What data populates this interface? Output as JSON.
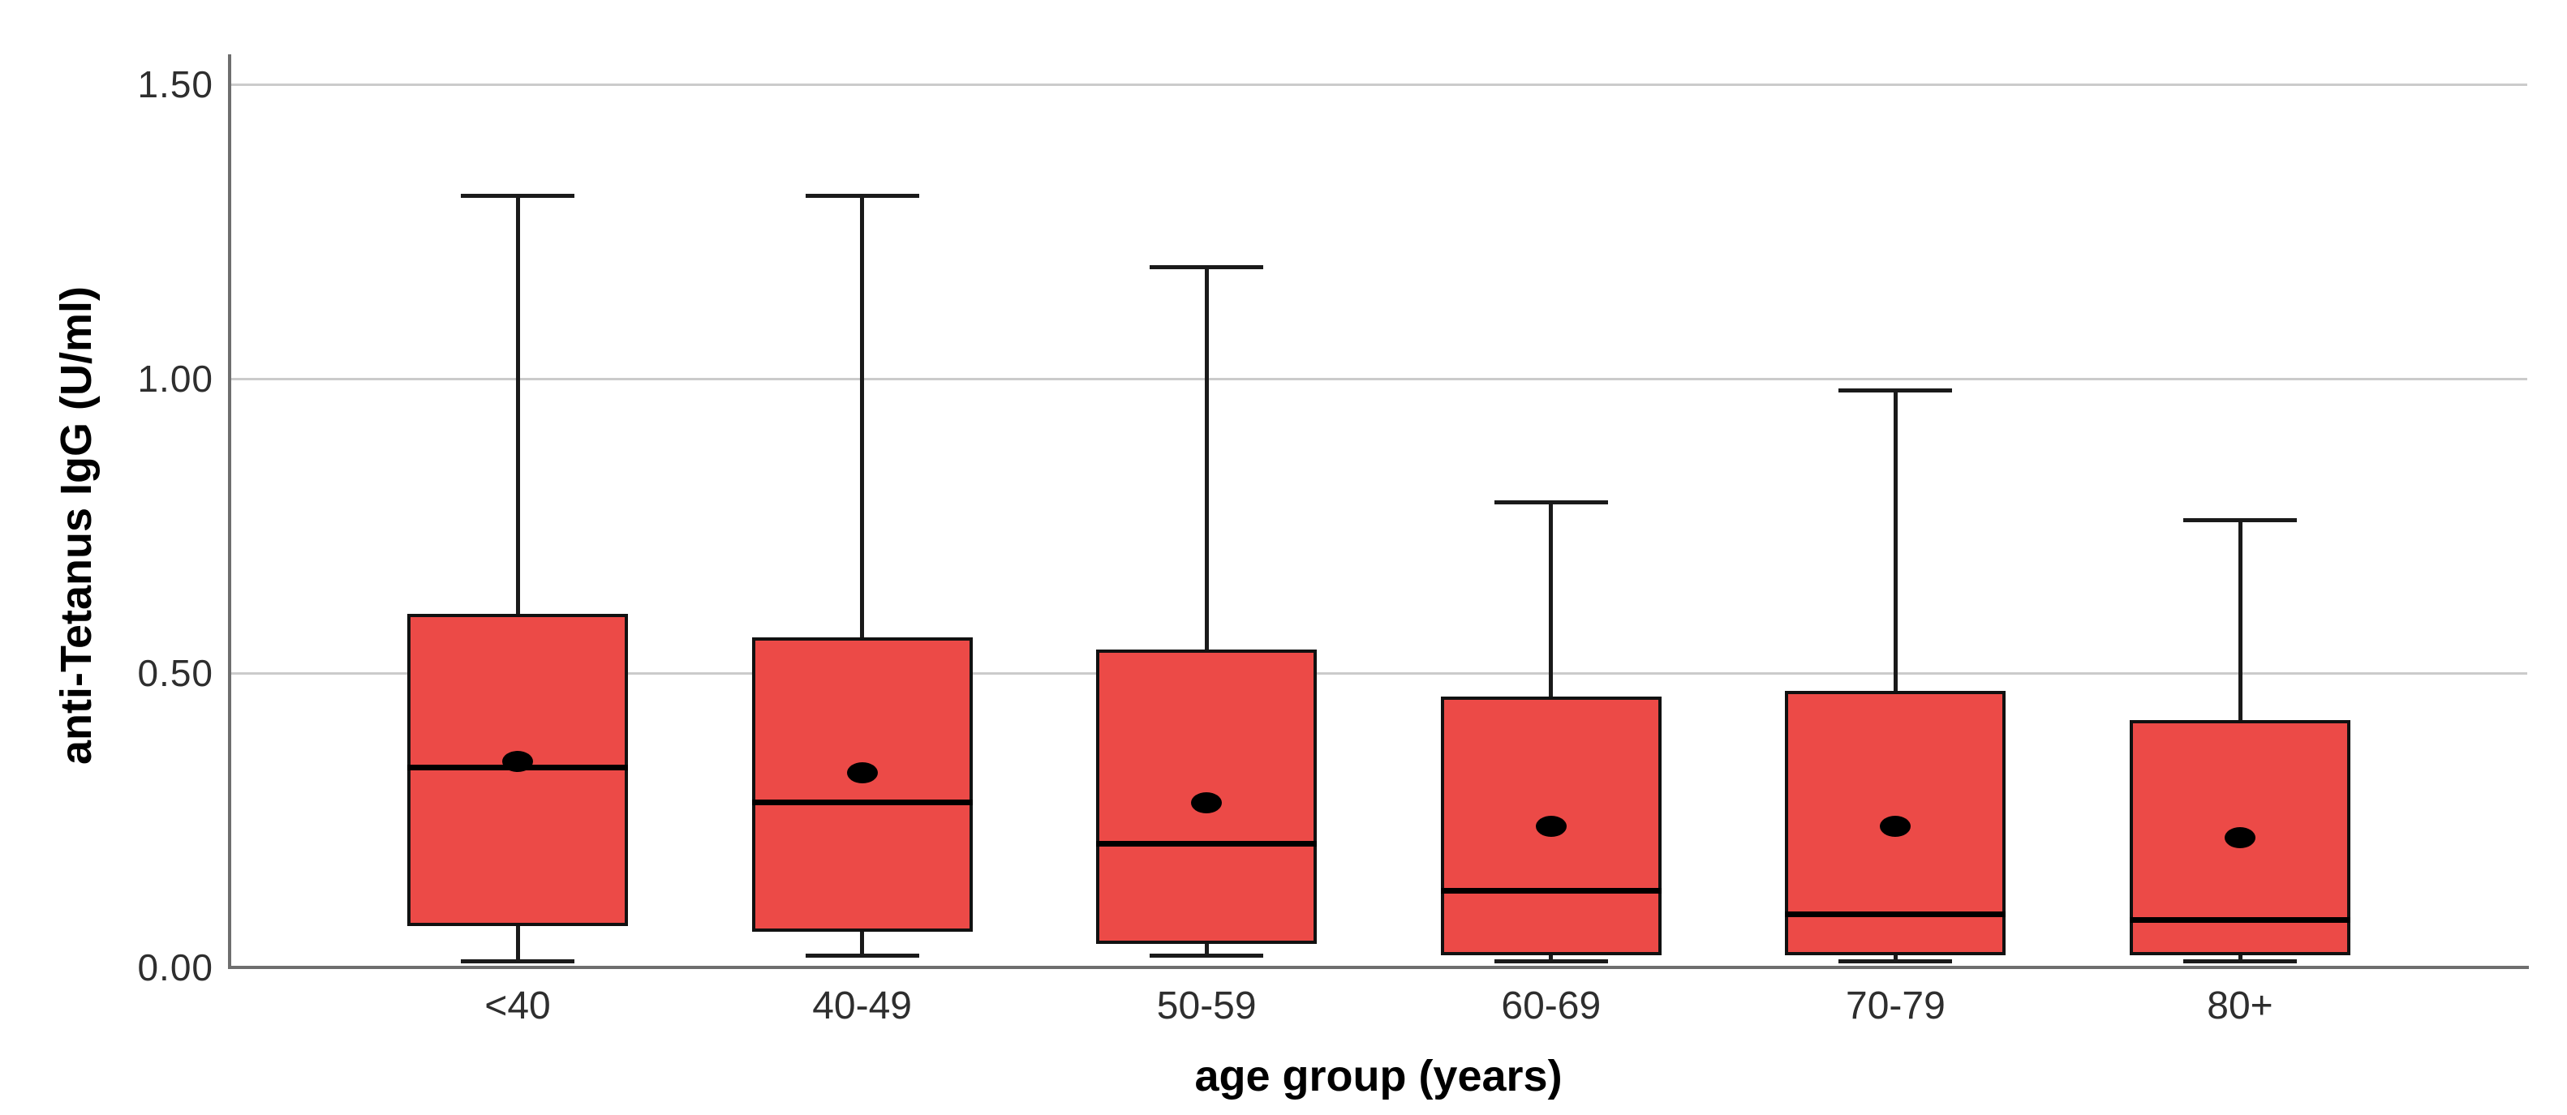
{
  "chart": {
    "y_axis_title": "anti-Tetanus IgG (U/ml)",
    "x_axis_title": "age group (years)"
  },
  "chart_data": {
    "type": "boxplot",
    "title": "",
    "ylabel": "anti-Tetanus IgG (U/ml)",
    "xlabel": "age group (years)",
    "categories": [
      "<40",
      "40-49",
      "50-59",
      "60-69",
      "70-79",
      "80+"
    ],
    "y_tick_values": [
      0.0,
      0.5,
      1.0,
      1.5
    ],
    "y_tick_labels": [
      "0.00",
      "0.50",
      "1.00",
      "1.50"
    ],
    "ylim": [
      0,
      1.55
    ],
    "grid": true,
    "gridline_values": [
      0.5,
      1.0,
      1.5
    ],
    "legend": "none",
    "series": [
      {
        "category": "<40",
        "whisker_low": 0.01,
        "q1": 0.07,
        "median": 0.34,
        "mean": 0.35,
        "q3": 0.6,
        "whisker_high": 1.31
      },
      {
        "category": "40-49",
        "whisker_low": 0.02,
        "q1": 0.06,
        "median": 0.28,
        "mean": 0.33,
        "q3": 0.56,
        "whisker_high": 1.31
      },
      {
        "category": "50-59",
        "whisker_low": 0.02,
        "q1": 0.04,
        "median": 0.21,
        "mean": 0.28,
        "q3": 0.54,
        "whisker_high": 1.19
      },
      {
        "category": "60-69",
        "whisker_low": 0.01,
        "q1": 0.02,
        "median": 0.13,
        "mean": 0.24,
        "q3": 0.46,
        "whisker_high": 0.79
      },
      {
        "category": "70-79",
        "whisker_low": 0.01,
        "q1": 0.02,
        "median": 0.09,
        "mean": 0.24,
        "q3": 0.47,
        "whisker_high": 0.98
      },
      {
        "category": "80+",
        "whisker_low": 0.01,
        "q1": 0.02,
        "median": 0.08,
        "mean": 0.22,
        "q3": 0.42,
        "whisker_high": 0.76
      }
    ],
    "colors": {
      "box_fill": "#ec4a47",
      "box_border": "#111111",
      "median": "#000000",
      "mean_dot": "#000000",
      "whisker": "#1a1a1a",
      "gridline": "#cbcbcb",
      "axis": "#6e6e6e",
      "tick_label": "#2e2e2e",
      "title": "#000000"
    }
  }
}
